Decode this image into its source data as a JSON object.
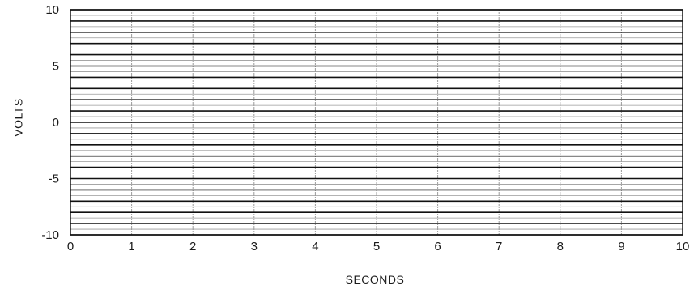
{
  "chart_data": {
    "type": "line",
    "title": "",
    "xlabel": "SECONDS",
    "ylabel": "VOLTS",
    "xlim": [
      0,
      10
    ],
    "ylim": [
      -10,
      10
    ],
    "x_ticks": [
      0,
      1,
      2,
      3,
      4,
      5,
      6,
      7,
      8,
      9,
      10
    ],
    "x_tick_labels": [
      "0",
      "1",
      "2",
      "3",
      "4",
      "5",
      "6",
      "7",
      "8",
      "9",
      "10"
    ],
    "y_ticks": [
      10,
      5,
      0,
      -5,
      -10
    ],
    "y_tick_labels": [
      "10",
      "5",
      "0",
      "-5",
      "-10"
    ],
    "series": [
      {
        "values": [
          10,
          10
        ]
      },
      {
        "values": [
          9,
          9
        ]
      },
      {
        "values": [
          8,
          8
        ]
      },
      {
        "values": [
          7,
          7
        ]
      },
      {
        "values": [
          6,
          6
        ]
      },
      {
        "values": [
          5,
          5
        ]
      },
      {
        "values": [
          4,
          4
        ]
      },
      {
        "values": [
          3,
          3
        ]
      },
      {
        "values": [
          2,
          2
        ]
      },
      {
        "values": [
          1,
          1
        ]
      },
      {
        "values": [
          0,
          0
        ]
      },
      {
        "values": [
          -1,
          -1
        ]
      },
      {
        "values": [
          -2,
          -2
        ]
      },
      {
        "values": [
          -3,
          -3
        ]
      },
      {
        "values": [
          -4,
          -4
        ]
      },
      {
        "values": [
          -5,
          -5
        ]
      },
      {
        "values": [
          -6,
          -6
        ]
      },
      {
        "values": [
          -7,
          -7
        ]
      },
      {
        "values": [
          -8,
          -8
        ]
      },
      {
        "values": [
          -9,
          -9
        ]
      },
      {
        "values": [
          -10,
          -10
        ]
      }
    ],
    "x": [
      0,
      10
    ],
    "grid": true,
    "line_color": "#111111",
    "grid_color": "#9a9a9a"
  }
}
